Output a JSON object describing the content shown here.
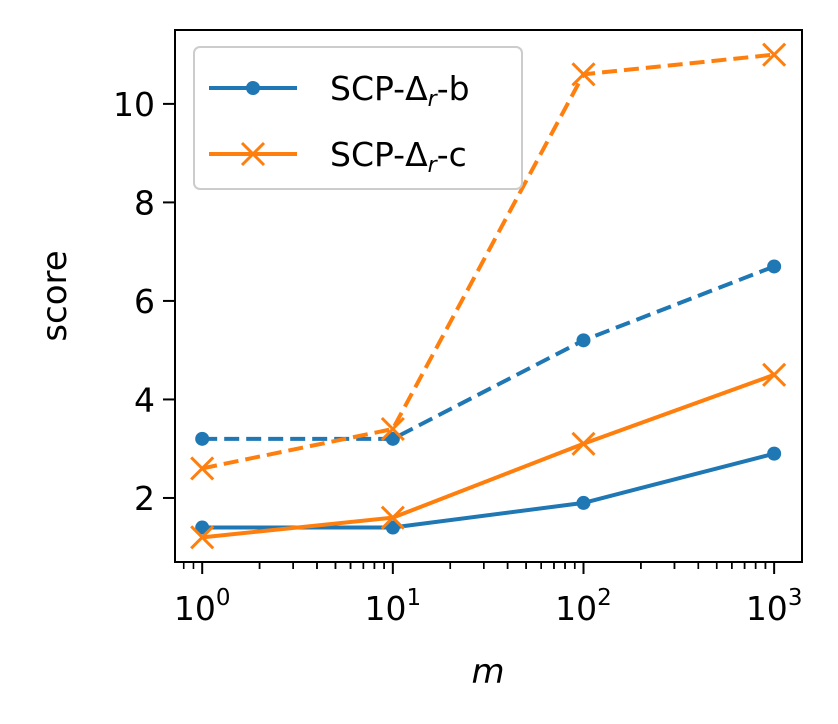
{
  "chart_data": {
    "type": "line",
    "title": "",
    "xlabel": "m",
    "ylabel": "score",
    "xscale": "log",
    "x": [
      1,
      10,
      100,
      1000
    ],
    "xlim": [
      0.72,
      1400
    ],
    "ylim": [
      0.7,
      11.5
    ],
    "xticks": [
      {
        "value": 1,
        "base": "10",
        "exp": "0"
      },
      {
        "value": 10,
        "base": "10",
        "exp": "1"
      },
      {
        "value": 100,
        "base": "10",
        "exp": "2"
      },
      {
        "value": 1000,
        "base": "10",
        "exp": "3"
      }
    ],
    "yticks": [
      {
        "value": 2,
        "label": "2"
      },
      {
        "value": 4,
        "label": "4"
      },
      {
        "value": 6,
        "label": "6"
      },
      {
        "value": 8,
        "label": "8"
      },
      {
        "value": 10,
        "label": "10"
      }
    ],
    "legend_position": "top-left",
    "legend": [
      {
        "key": "b",
        "base": "SCP-Δ",
        "sub": "r",
        "suffix": "-b",
        "color": "#1f77b4",
        "marker": "dot"
      },
      {
        "key": "c",
        "base": "SCP-Δ",
        "sub": "r",
        "suffix": "-c",
        "color": "#ff7f0e",
        "marker": "x"
      }
    ],
    "series": [
      {
        "name": "SCP-Δr-b (solid)",
        "group": "b",
        "style": "solid",
        "color": "#1f77b4",
        "marker": "dot",
        "values": [
          1.4,
          1.4,
          1.9,
          2.9
        ]
      },
      {
        "name": "SCP-Δr-b (dashed)",
        "group": "b",
        "style": "dashed",
        "color": "#1f77b4",
        "marker": "dot",
        "values": [
          3.2,
          3.2,
          5.2,
          6.7
        ]
      },
      {
        "name": "SCP-Δr-c (solid)",
        "group": "c",
        "style": "solid",
        "color": "#ff7f0e",
        "marker": "x",
        "values": [
          1.2,
          1.6,
          3.1,
          4.5
        ]
      },
      {
        "name": "SCP-Δr-c (dashed)",
        "group": "c",
        "style": "dashed",
        "color": "#ff7f0e",
        "marker": "x",
        "values": [
          2.6,
          3.4,
          10.6,
          11.0
        ]
      }
    ]
  }
}
